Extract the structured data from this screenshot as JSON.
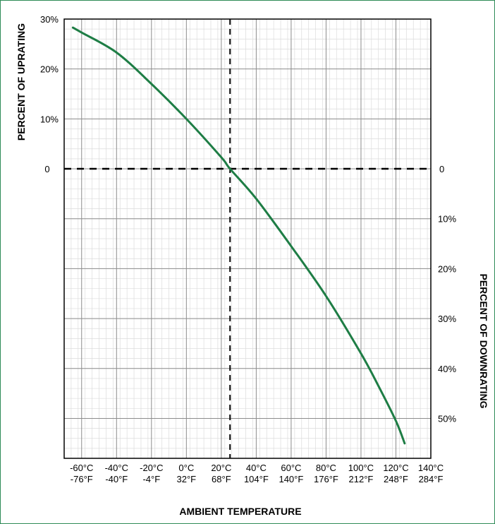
{
  "chart_data": {
    "type": "line",
    "xlabel": "AMBIENT TEMPERATURE",
    "ylabel_left": "PERCENT OF UPRATING",
    "ylabel_right": "PERCENT OF DOWNRATING",
    "xlim": [
      -70,
      140
    ],
    "ylim": [
      -58,
      30
    ],
    "grid": true,
    "x_ticks": [
      {
        "value": -60,
        "c": "-60°C",
        "f": "-76°F"
      },
      {
        "value": -40,
        "c": "-40°C",
        "f": "-40°F"
      },
      {
        "value": -20,
        "c": "-20°C",
        "f": "-4°F"
      },
      {
        "value": 0,
        "c": "0°C",
        "f": "32°F"
      },
      {
        "value": 20,
        "c": "20°C",
        "f": "68°F"
      },
      {
        "value": 40,
        "c": "40°C",
        "f": "104°F"
      },
      {
        "value": 60,
        "c": "60°C",
        "f": "140°F"
      },
      {
        "value": 80,
        "c": "80°C",
        "f": "176°F"
      },
      {
        "value": 100,
        "c": "100°C",
        "f": "212°F"
      },
      {
        "value": 120,
        "c": "120°C",
        "f": "248°F"
      },
      {
        "value": 140,
        "c": "140°C",
        "f": "284°F"
      }
    ],
    "y_ticks_left": [
      {
        "value": 30,
        "label": "30%"
      },
      {
        "value": 20,
        "label": "20%"
      },
      {
        "value": 10,
        "label": "10%"
      },
      {
        "value": 0,
        "label": "0"
      }
    ],
    "y_ticks_right": [
      {
        "value": 0,
        "label": "0"
      },
      {
        "value": -10,
        "label": "10%"
      },
      {
        "value": -20,
        "label": "20%"
      },
      {
        "value": -30,
        "label": "30%"
      },
      {
        "value": -40,
        "label": "40%"
      },
      {
        "value": -50,
        "label": "50%"
      }
    ],
    "reference_lines": {
      "x": 25,
      "y": 0
    },
    "series": [
      {
        "color": "#1e7d45",
        "x": [
          -65,
          -60,
          -40,
          -20,
          0,
          20,
          25,
          40,
          60,
          80,
          100,
          110,
          120,
          125
        ],
        "y": [
          28.3,
          27.3,
          23.3,
          17,
          10,
          2.3,
          0,
          -6,
          -15.5,
          -25.5,
          -37,
          -43.5,
          -50.5,
          -55
        ]
      }
    ]
  }
}
